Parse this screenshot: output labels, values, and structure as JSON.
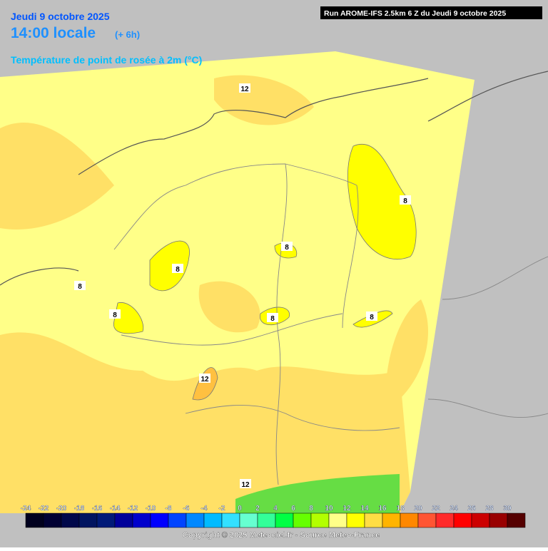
{
  "header": {
    "date": "Jeudi 9 octobre 2025",
    "time": "14:00 locale",
    "offset": "(+ 6h)",
    "parameter": "Température de point de rosée à 2m (°C)",
    "run": "Run AROME-IFS 2.5km 6 Z du Jeudi 9 octobre 2025"
  },
  "map": {
    "contour_labels": [
      "12",
      "8",
      "8",
      "8",
      "8",
      "8",
      "8",
      "8",
      "12",
      "12"
    ]
  },
  "legend": {
    "ticks": [
      -24,
      -22,
      -20,
      -18,
      -16,
      -14,
      -12,
      -10,
      -8,
      -6,
      -4,
      -2,
      0,
      2,
      4,
      6,
      8,
      10,
      12,
      14,
      16,
      18,
      20,
      22,
      24,
      26,
      28,
      30
    ],
    "colors": [
      "#00001e",
      "#000033",
      "#00084a",
      "#001460",
      "#001a78",
      "#00009a",
      "#0000cc",
      "#0000ff",
      "#0044ff",
      "#0088ff",
      "#00bbff",
      "#33e0ff",
      "#66ffd0",
      "#33ff99",
      "#00ff44",
      "#66ff00",
      "#b3ff00",
      "#ffff88",
      "#ffff00",
      "#ffdd44",
      "#ffb400",
      "#ff8800",
      "#ff5533",
      "#ff2a2a",
      "#ff0000",
      "#cc0000",
      "#990000",
      "#550000"
    ]
  },
  "footer": {
    "copyright": "Copyright © 2025 Meteociel.fr - Source Meteo-France"
  }
}
